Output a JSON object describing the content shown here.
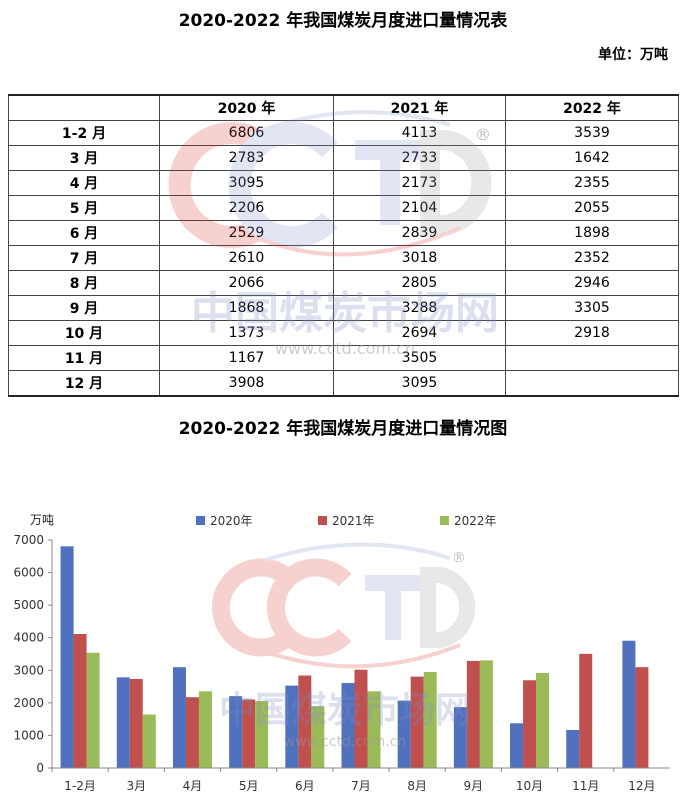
{
  "table": {
    "title": "2020-2022 年我国煤炭月度进口量情况表",
    "unit": "单位：万吨",
    "columns": [
      "",
      "2020 年",
      "2021 年",
      "2022 年"
    ],
    "rows": [
      {
        "month": "1-2 月",
        "v2020": "6806",
        "v2021": "4113",
        "v2022": "3539"
      },
      {
        "month": "3 月",
        "v2020": "2783",
        "v2021": "2733",
        "v2022": "1642"
      },
      {
        "month": "4 月",
        "v2020": "3095",
        "v2021": "2173",
        "v2022": "2355"
      },
      {
        "month": "5 月",
        "v2020": "2206",
        "v2021": "2104",
        "v2022": "2055"
      },
      {
        "month": "6 月",
        "v2020": "2529",
        "v2021": "2839",
        "v2022": "1898"
      },
      {
        "month": "7 月",
        "v2020": "2610",
        "v2021": "3018",
        "v2022": "2352"
      },
      {
        "month": "8 月",
        "v2020": "2066",
        "v2021": "2805",
        "v2022": "2946"
      },
      {
        "month": "9 月",
        "v2020": "1868",
        "v2021": "3288",
        "v2022": "3305"
      },
      {
        "month": "10 月",
        "v2020": "1373",
        "v2021": "2694",
        "v2022": "2918"
      },
      {
        "month": "11 月",
        "v2020": "1167",
        "v2021": "3505",
        "v2022": ""
      },
      {
        "month": "12 月",
        "v2020": "3908",
        "v2021": "3095",
        "v2022": ""
      }
    ]
  },
  "watermark": {
    "logo": "CCTD",
    "registered": "®",
    "cn_name": "中国煤炭市场网",
    "url": "www.cctd.com.cn"
  },
  "chart_data": {
    "type": "bar",
    "title": "2020-2022 年我国煤炭月度进口量情况图",
    "ylabel": "万吨",
    "xlabel": "",
    "ylim": [
      0,
      7000
    ],
    "yticks": [
      0,
      1000,
      2000,
      3000,
      4000,
      5000,
      6000,
      7000
    ],
    "grid": false,
    "legend_position": "top",
    "categories": [
      "1-2月",
      "3月",
      "4月",
      "5月",
      "6月",
      "7月",
      "8月",
      "9月",
      "10月",
      "11月",
      "12月"
    ],
    "series": [
      {
        "name": "2020年",
        "color": "#4f71be",
        "values": [
          6806,
          2783,
          3095,
          2206,
          2529,
          2610,
          2066,
          1868,
          1373,
          1167,
          3908
        ]
      },
      {
        "name": "2021年",
        "color": "#c0504d",
        "values": [
          4113,
          2733,
          2173,
          2104,
          2839,
          3018,
          2805,
          3288,
          2694,
          3505,
          3095
        ]
      },
      {
        "name": "2022年",
        "color": "#9bbb59",
        "values": [
          3539,
          1642,
          2355,
          2055,
          1898,
          2352,
          2946,
          3305,
          2918,
          null,
          null
        ]
      }
    ]
  }
}
